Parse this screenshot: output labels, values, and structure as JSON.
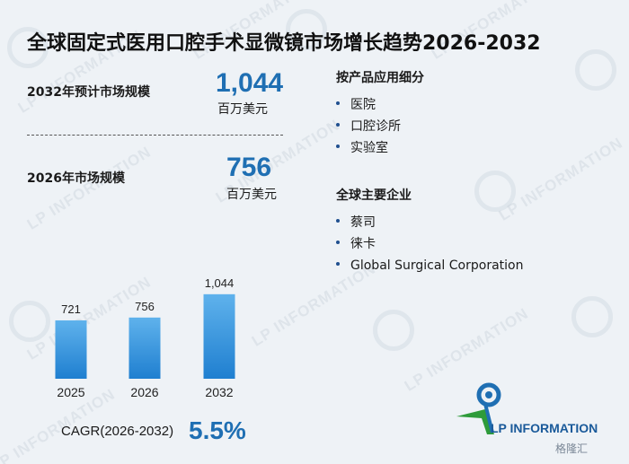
{
  "header": {
    "title": "全球固定式医用口腔手术显微镜市场增长趋势2026-2032"
  },
  "metrics": {
    "m2032": {
      "label": "2032年预计市场规模",
      "value": "1,044",
      "unit": "百万美元"
    },
    "m2026": {
      "label": "2026年市场规模",
      "value": "756",
      "unit": "百万美元"
    }
  },
  "chart_data": {
    "type": "bar",
    "categories": [
      "2025",
      "2026",
      "2032"
    ],
    "values": [
      721,
      756,
      1044
    ],
    "value_labels": [
      "721",
      "756",
      "1,044"
    ],
    "title": "",
    "xlabel": "",
    "ylabel": "",
    "grid": false,
    "colors": {
      "bar_top": "#5fb2ec",
      "bar_bottom": "#1f7fd0"
    }
  },
  "cagr": {
    "label": "CAGR(2026-2032)",
    "value": "5.5%"
  },
  "segments": {
    "by_application": {
      "title": "按产品应用细分",
      "items": [
        "医院",
        "口腔诊所",
        "实验室"
      ]
    },
    "key_players": {
      "title": "全球主要企业",
      "items": [
        "蔡司",
        "徕卡",
        "Global Surgical Corporation"
      ]
    }
  },
  "branding": {
    "logo_text": "LP INFORMATION",
    "watermark_text": "LP INFORMATION",
    "corner_text": "格隆汇"
  },
  "colors": {
    "accent": "#1f6fb3",
    "background": "#eef2f6"
  }
}
